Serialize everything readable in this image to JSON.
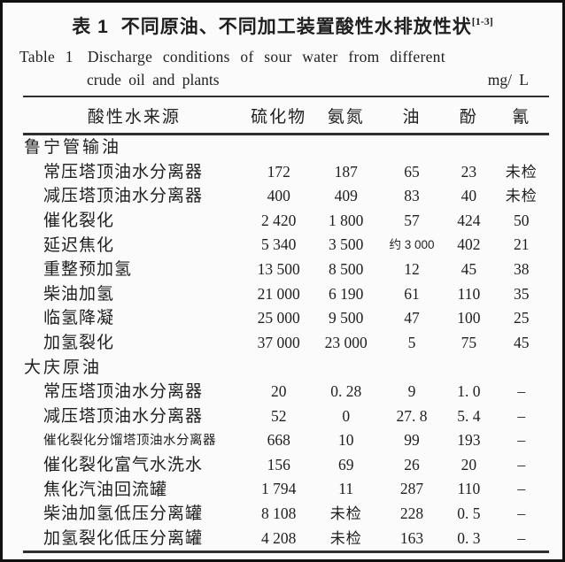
{
  "title": {
    "zh_label": "表 1",
    "zh_text": "不同原油、不同加工装置酸性水排放性状",
    "citation": "[1-3]",
    "en_label": "Table 1",
    "en_line1": "Discharge conditions of sour water from different",
    "en_line2": "crude oil and plants",
    "unit": "mg/ L"
  },
  "table": {
    "columns": [
      "酸性水来源",
      "硫化物",
      "氨氮",
      "油",
      "酚",
      "氰"
    ],
    "rows": [
      {
        "type": "group",
        "label": "鲁宁管输油"
      },
      {
        "type": "data",
        "label": "常压塔顶油水分离器",
        "values": [
          "172",
          "187",
          "65",
          "23",
          "未检"
        ]
      },
      {
        "type": "data",
        "label": "减压塔顶油水分离器",
        "values": [
          "400",
          "409",
          "83",
          "40",
          "未检"
        ]
      },
      {
        "type": "data",
        "label": "催化裂化",
        "values": [
          "2 420",
          "1 800",
          "57",
          "424",
          "50"
        ]
      },
      {
        "type": "data",
        "label": "延迟焦化",
        "values": [
          "5 340",
          "3 500",
          "约 3 000",
          "402",
          "21"
        ],
        "small_value_indexes": [
          2
        ]
      },
      {
        "type": "data",
        "label": "重整预加氢",
        "values": [
          "13 500",
          "8 500",
          "12",
          "45",
          "38"
        ]
      },
      {
        "type": "data",
        "label": "柴油加氢",
        "values": [
          "21 000",
          "6 190",
          "61",
          "110",
          "35"
        ]
      },
      {
        "type": "data",
        "label": "临氢降凝",
        "values": [
          "25 000",
          "9 500",
          "47",
          "100",
          "25"
        ]
      },
      {
        "type": "data",
        "label": "加氢裂化",
        "values": [
          "37 000",
          "23 000",
          "5",
          "75",
          "45"
        ]
      },
      {
        "type": "group",
        "label": "大庆原油"
      },
      {
        "type": "data",
        "label": "常压塔顶油水分离器",
        "values": [
          "20",
          "0. 28",
          "9",
          "1. 0",
          "–"
        ]
      },
      {
        "type": "data",
        "label": "减压塔顶油水分离器",
        "values": [
          "52",
          "0",
          "27. 8",
          "5. 4",
          "–"
        ]
      },
      {
        "type": "data",
        "label": "催化裂化分馏塔顶油水分离器",
        "values": [
          "668",
          "10",
          "99",
          "193",
          "–"
        ],
        "small_label": true
      },
      {
        "type": "data",
        "label": "催化裂化富气水洗水",
        "values": [
          "156",
          "69",
          "26",
          "20",
          "–"
        ]
      },
      {
        "type": "data",
        "label": "焦化汽油回流罐",
        "values": [
          "1 794",
          "11",
          "287",
          "110",
          "–"
        ]
      },
      {
        "type": "data",
        "label": "柴油加氢低压分离罐",
        "values": [
          "8 108",
          "未检",
          "228",
          "0. 5",
          "–"
        ]
      },
      {
        "type": "data",
        "label": "加氢裂化低压分离罐",
        "values": [
          "4 208",
          "未检",
          "163",
          "0. 3",
          "–"
        ]
      }
    ]
  }
}
